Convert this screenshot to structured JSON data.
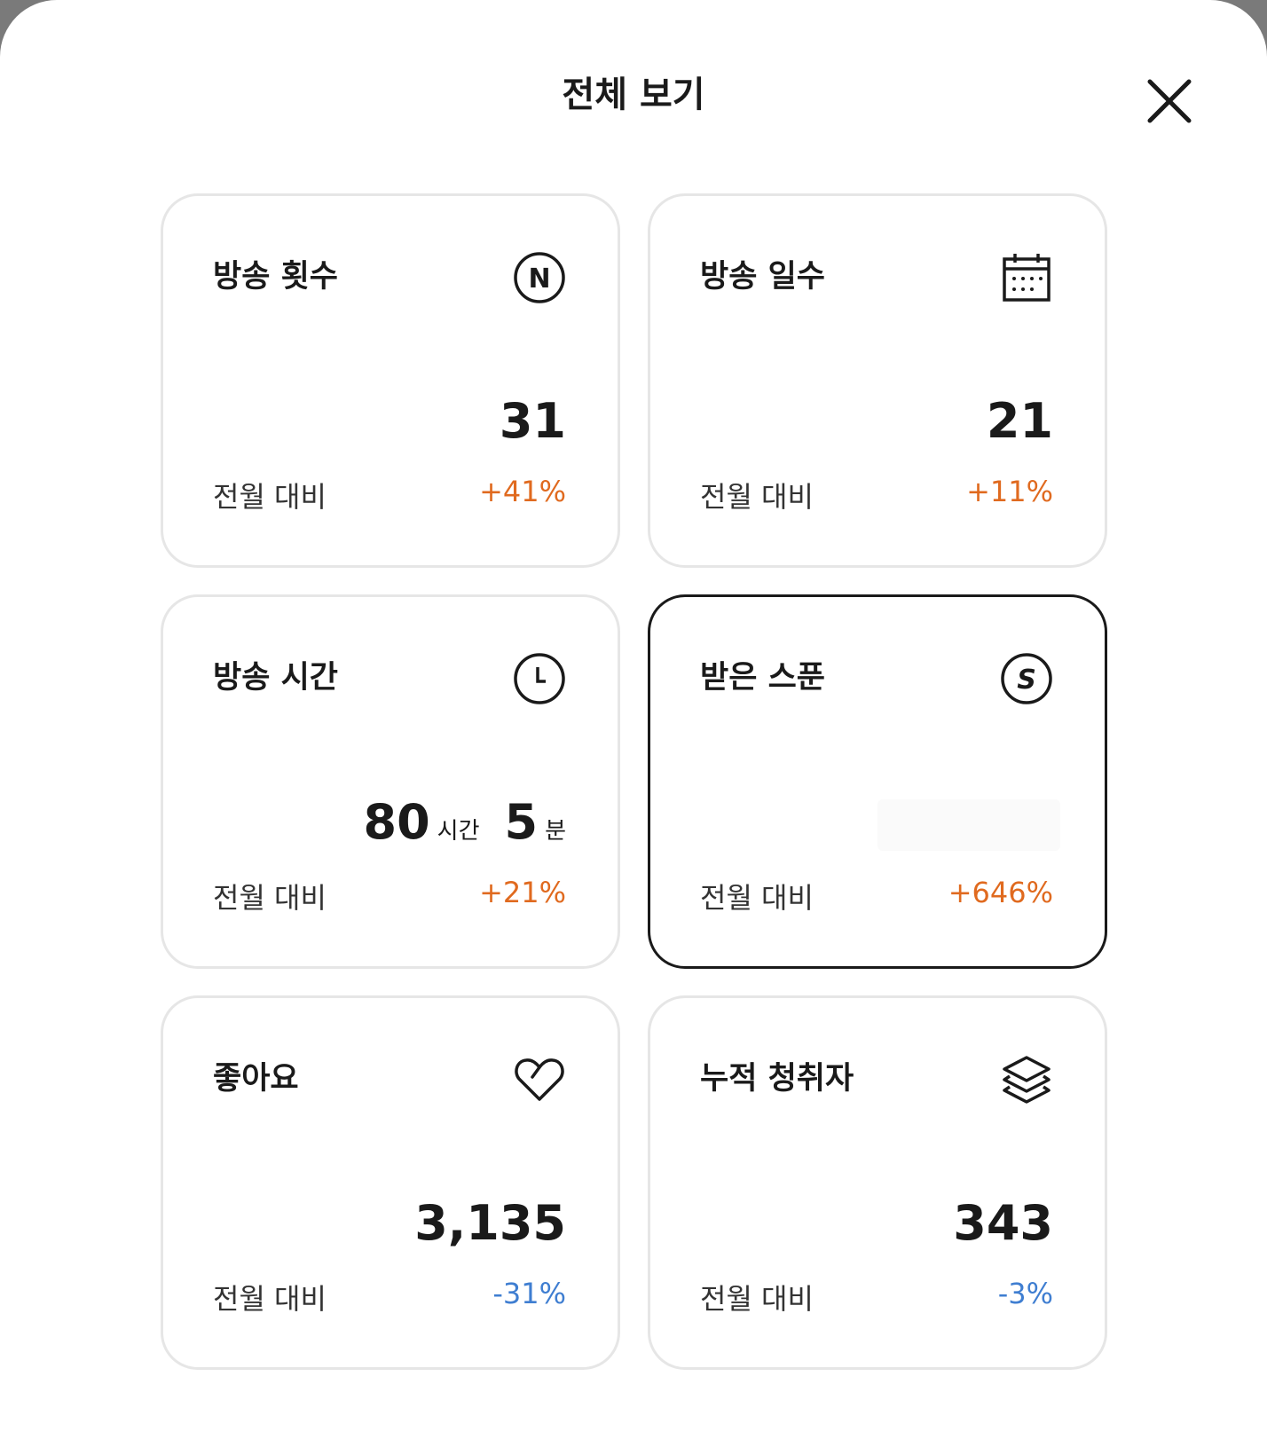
{
  "header": {
    "title": "전체 보기",
    "close_icon": "close-icon"
  },
  "colors": {
    "increase": "#e06a1f",
    "decrease": "#3f7ed1"
  },
  "cards": [
    {
      "title": "방송 횟수",
      "icon": "n-circle-icon",
      "value": "31",
      "compare_label": "전월 대비",
      "change": "+41%"
    },
    {
      "title": "방송 일수",
      "icon": "calendar-icon",
      "value": "21",
      "compare_label": "전월 대비",
      "change": "+11%"
    },
    {
      "title": "방송 시간",
      "icon": "clock-icon",
      "hours": "80",
      "hours_unit": "시간",
      "minutes": "5",
      "minutes_unit": "분",
      "compare_label": "전월 대비",
      "change": "+21%"
    },
    {
      "title": "받은 스푼",
      "icon": "spoon-s-circle-icon",
      "value": "",
      "compare_label": "전월 대비",
      "change": "+646%",
      "selected": true
    },
    {
      "title": "좋아요",
      "icon": "heart-icon",
      "value": "3,135",
      "compare_label": "전월 대비",
      "change": "-31%"
    },
    {
      "title": "누적 청취자",
      "icon": "layers-icon",
      "value": "343",
      "compare_label": "전월 대비",
      "change": "-3%"
    }
  ]
}
